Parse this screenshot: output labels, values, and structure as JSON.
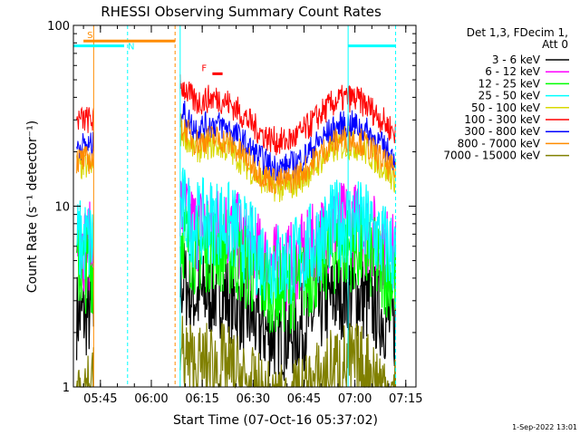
{
  "chart_data": {
    "type": "line",
    "title": "RHESSI Observing Summary Count Rates",
    "xlabel": "Start Time (07-Oct-16 05:37:02)",
    "ylabel": "Count Rate (s⁻¹ detector⁻¹)",
    "y_scale": "log",
    "ylim": [
      1,
      100
    ],
    "xlim": [
      "05:37:02",
      "07:18:00"
    ],
    "x_ticks": [
      "05:45",
      "06:00",
      "06:15",
      "06:30",
      "06:45",
      "07:00",
      "07:15"
    ],
    "y_ticks": [
      "1",
      "10",
      "100"
    ],
    "legend_header": [
      "Det 1,3, FDecim 1,",
      "Att 0"
    ],
    "legend_position": "right",
    "series": [
      {
        "name": "3 - 6 keV",
        "color": "#000000",
        "level": 2.5
      },
      {
        "name": "6 - 12 keV",
        "color": "#ff00ff",
        "level": 6.0
      },
      {
        "name": "12 - 25 keV",
        "color": "#00ff00",
        "level": 4.5
      },
      {
        "name": "25 - 50 keV",
        "color": "#00ffff",
        "level": 6.3
      },
      {
        "name": "50 - 100 keV",
        "color": "#d8d800",
        "level": 16.5
      },
      {
        "name": "100 - 300 keV",
        "color": "#ff0000",
        "level": 30.0
      },
      {
        "name": "300 - 800 keV",
        "color": "#0000ff",
        "level": 21.5
      },
      {
        "name": "800 - 7000 keV",
        "color": "#ff8c00",
        "level": 18.0
      },
      {
        "name": "7000 - 15000 keV",
        "color": "#808000",
        "level": 1.0
      }
    ],
    "segments": [
      {
        "start": "05:38:00",
        "end": "05:43:00"
      },
      {
        "start": "06:08:30",
        "end": "07:12:00"
      }
    ],
    "annotations": [
      {
        "label": "S",
        "color": "#ff8c00",
        "start": "05:40:00",
        "end": "06:07:00",
        "y": 82
      },
      {
        "label": "N",
        "color": "#00ffff",
        "start": "05:37:02",
        "end": "05:52:00",
        "y": 77
      },
      {
        "label": "F",
        "color": "#ff0000",
        "start": "06:18:00",
        "end": "06:21:00",
        "y": 54
      },
      {
        "label": "",
        "color": "#00ffff",
        "start": "06:58:00",
        "end": "07:12:00",
        "y": 77
      }
    ],
    "vlines": [
      {
        "t": "05:43:00",
        "color": "#ff8c00",
        "style": "solid"
      },
      {
        "t": "05:53:00",
        "color": "#00ffff",
        "style": "dashed"
      },
      {
        "t": "06:07:00",
        "color": "#ff8c00",
        "style": "dashed"
      },
      {
        "t": "06:08:30",
        "color": "#00ffff",
        "style": "solid"
      },
      {
        "t": "06:58:00",
        "color": "#00ffff",
        "style": "solid"
      },
      {
        "t": "07:12:00",
        "color": "#00ffff",
        "style": "dashed"
      }
    ]
  },
  "footer": {
    "timestamp": "1-Sep-2022 13:01"
  }
}
